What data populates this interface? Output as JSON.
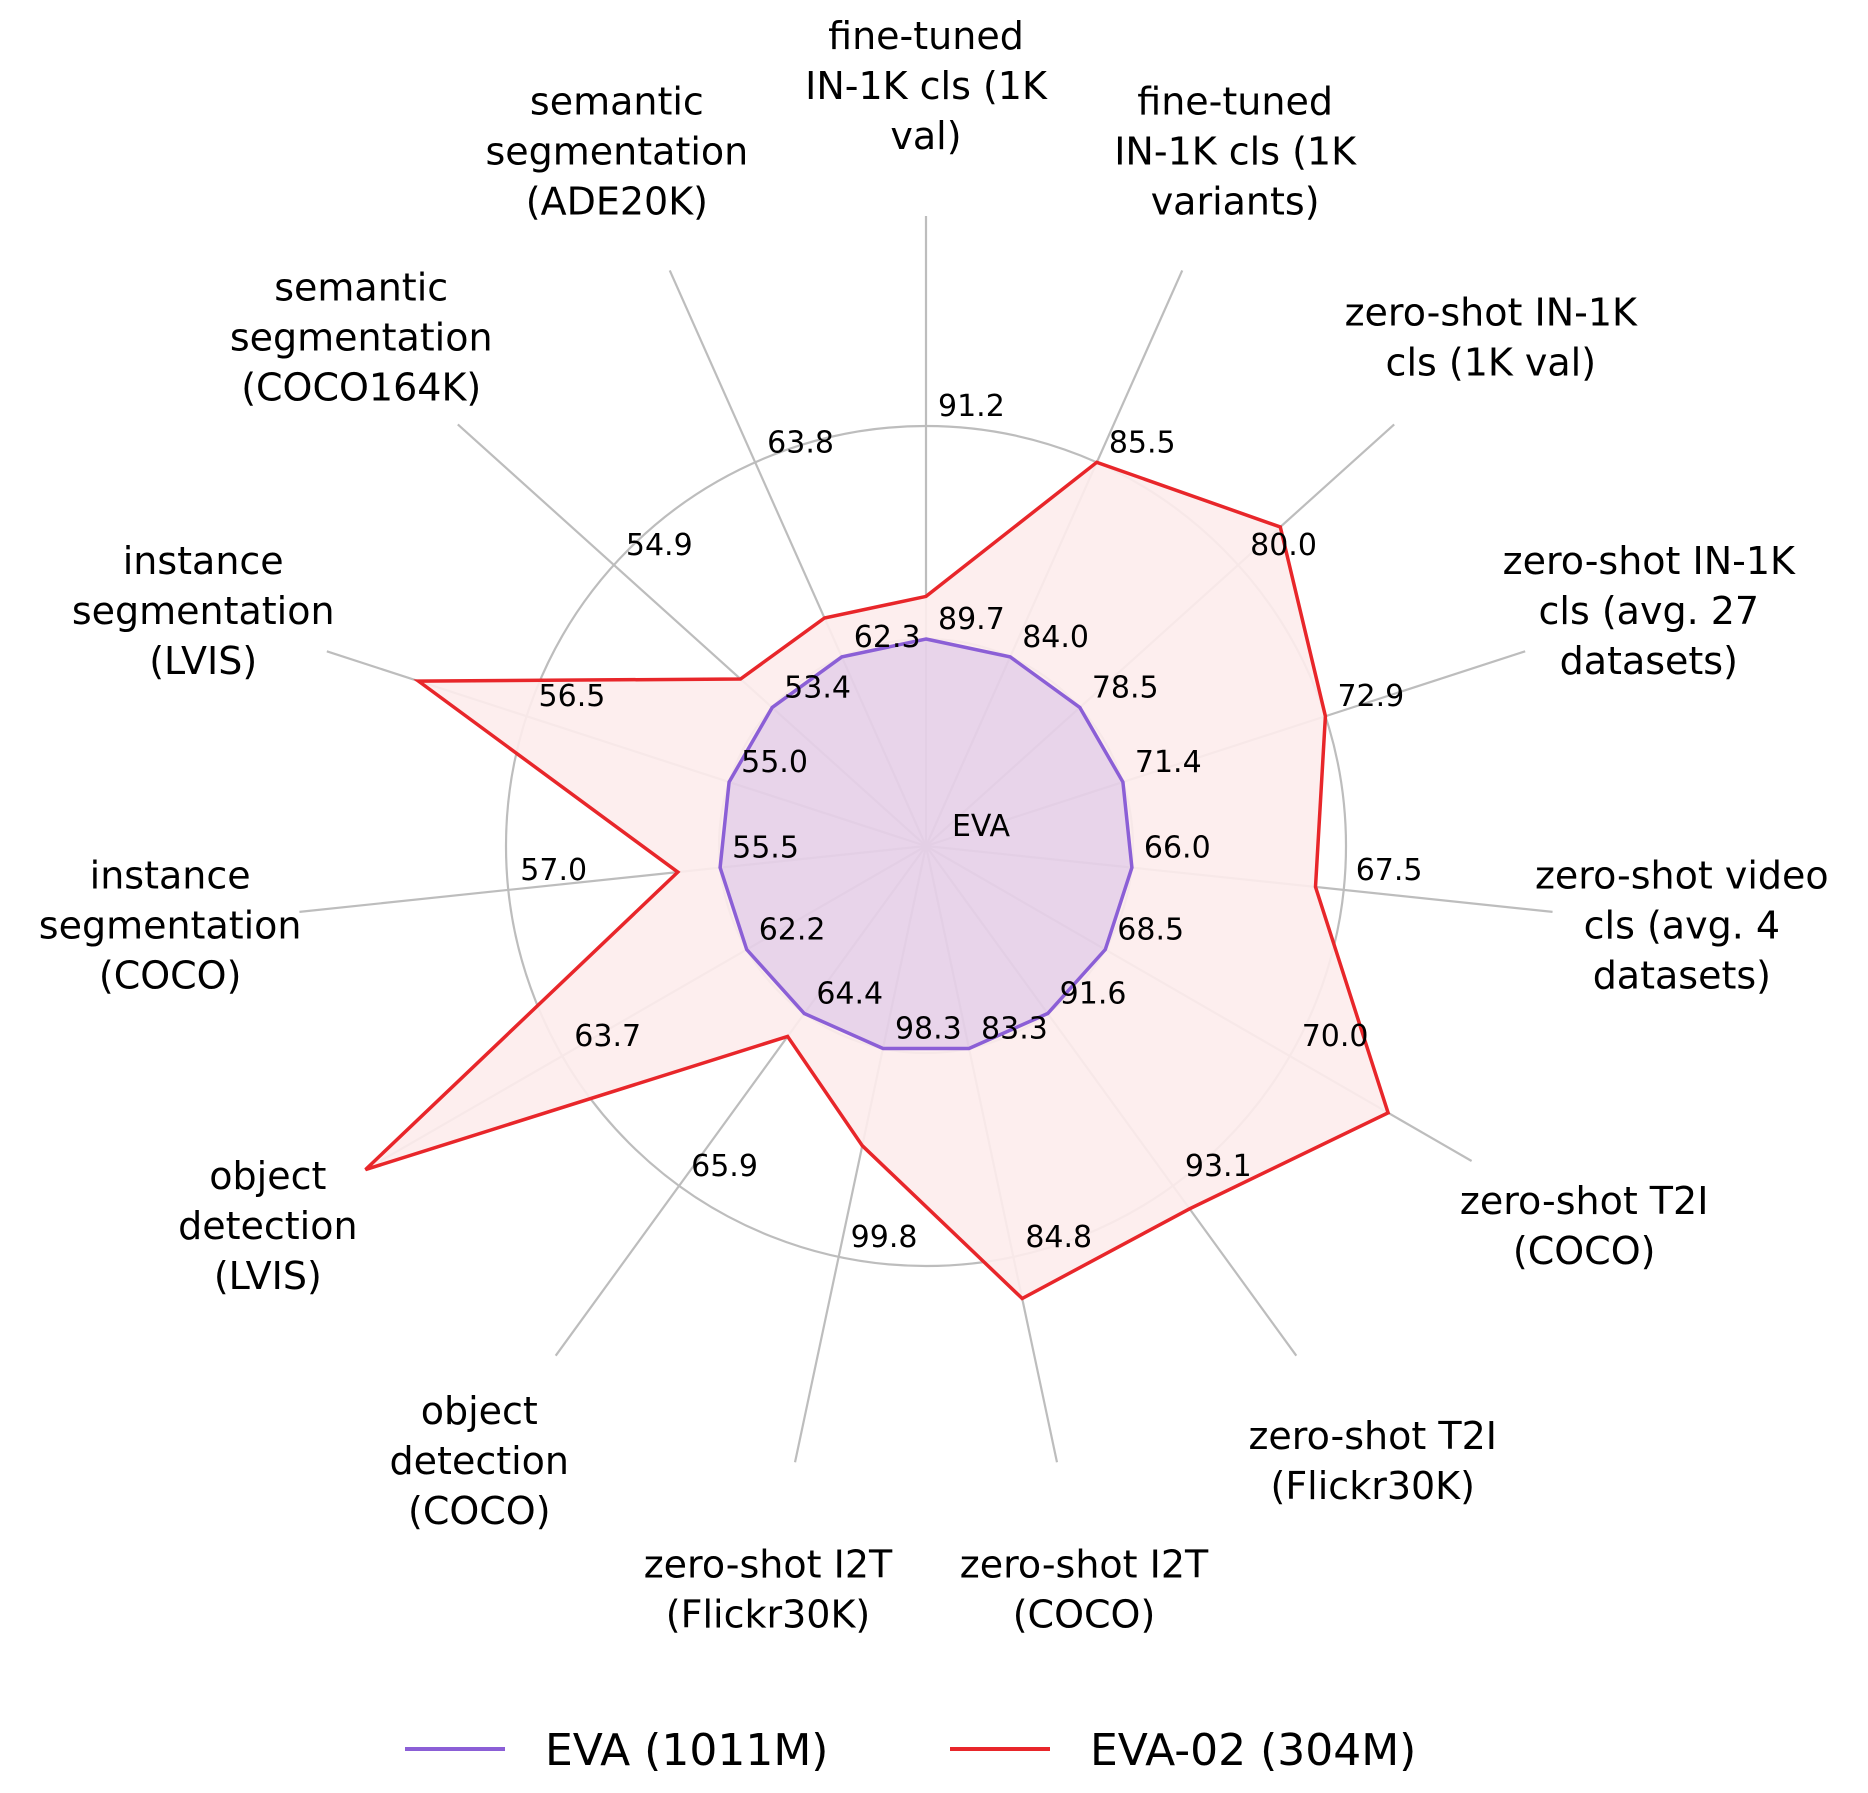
{
  "chart_data": {
    "type": "radar",
    "center_label": "EVA",
    "axes": [
      {
        "label": "fine-tuned IN-1K cls (1K val)",
        "lines": [
          "fine-tuned",
          "IN-1K cls (1K",
          "val)"
        ],
        "inner_tick": "89.7",
        "outer_tick": "91.2",
        "eva": 89.7,
        "eva02": 90.0
      },
      {
        "label": "fine-tuned IN-1K cls (1K variants)",
        "lines": [
          "fine-tuned",
          "IN-1K cls (1K",
          "variants)"
        ],
        "inner_tick": "84.0",
        "outer_tick": "85.5",
        "eva": 84.0,
        "eva02": 85.5
      },
      {
        "label": "zero-shot IN-1K cls (1K val)",
        "lines": [
          "zero-shot IN-1K",
          "cls (1K val)"
        ],
        "inner_tick": "78.5",
        "outer_tick": "80.0",
        "eva": 78.5,
        "eva02": 80.4
      },
      {
        "label": "zero-shot IN-1K cls (avg. 27 datasets)",
        "lines": [
          "zero-shot IN-1K",
          "cls (avg. 27",
          "datasets)"
        ],
        "inner_tick": "71.4",
        "outer_tick": "72.9",
        "eva": 71.4,
        "eva02": 72.9
      },
      {
        "label": "zero-shot video cls (avg. 4 datasets)",
        "lines": [
          "zero-shot video",
          "cls (avg. 4",
          "datasets)"
        ],
        "inner_tick": "66.0",
        "outer_tick": "67.5",
        "eva": 66.0,
        "eva02": 67.3
      },
      {
        "label": "zero-shot T2I (COCO)",
        "lines": [
          "zero-shot T2I",
          "(COCO)"
        ],
        "inner_tick": "68.5",
        "outer_tick": "70.0",
        "eva": 68.5,
        "eva02": 70.8
      },
      {
        "label": "zero-shot T2I (Flickr30K)",
        "lines": [
          "zero-shot T2I",
          "(Flickr30K)"
        ],
        "inner_tick": "91.6",
        "outer_tick": "93.1",
        "eva": 91.6,
        "eva02": 93.3
      },
      {
        "label": "zero-shot I2T (COCO)",
        "lines": [
          "zero-shot I2T",
          "(COCO)"
        ],
        "inner_tick": "83.3",
        "outer_tick": "84.8",
        "eva": 83.3,
        "eva02": 85.1
      },
      {
        "label": "zero-shot I2T (Flickr30K)",
        "lines": [
          "zero-shot I2T",
          "(Flickr30K)"
        ],
        "inner_tick": "98.3",
        "outer_tick": "99.8",
        "eva": 98.3,
        "eva02": 99.0
      },
      {
        "label": "object detection (COCO)",
        "lines": [
          "object",
          "detection",
          "(COCO)"
        ],
        "inner_tick": "64.4",
        "outer_tick": "65.9",
        "eva": 64.4,
        "eva02": 64.6
      },
      {
        "label": "object detection (LVIS)",
        "lines": [
          "object",
          "detection",
          "(LVIS)"
        ],
        "inner_tick": "62.2",
        "outer_tick": "63.7",
        "eva": 62.2,
        "eva02": 65.3
      },
      {
        "label": "instance segmentation (COCO)",
        "lines": [
          "instance",
          "segmentation",
          "(COCO)"
        ],
        "inner_tick": "55.5",
        "outer_tick": "57.0",
        "eva": 55.5,
        "eva02": 55.8
      },
      {
        "label": "instance segmentation (LVIS)",
        "lines": [
          "instance",
          "segmentation",
          "(LVIS)"
        ],
        "inner_tick": "55.0",
        "outer_tick": "56.5",
        "eva": 55.0,
        "eva02": 57.3
      },
      {
        "label": "semantic segmentation (COCO164K)",
        "lines": [
          "semantic",
          "segmentation",
          "(COCO164K)"
        ],
        "inner_tick": "53.4",
        "outer_tick": "54.9",
        "eva": 53.4,
        "eva02": 53.7
      },
      {
        "label": "semantic segmentation (ADE20K)",
        "lines": [
          "semantic",
          "segmentation",
          "(ADE20K)"
        ],
        "inner_tick": "62.3",
        "outer_tick": "63.8",
        "eva": 62.3,
        "eva02": 62.6
      }
    ],
    "series": [
      {
        "name": "EVA (1011M)",
        "key": "eva",
        "color": "#8b5fd6"
      },
      {
        "name": "EVA-02 (304M)",
        "key": "eva02",
        "color": "#e8262a",
        "fill": "#fdecec"
      }
    ],
    "legend_position": "bottom",
    "grid": true
  }
}
